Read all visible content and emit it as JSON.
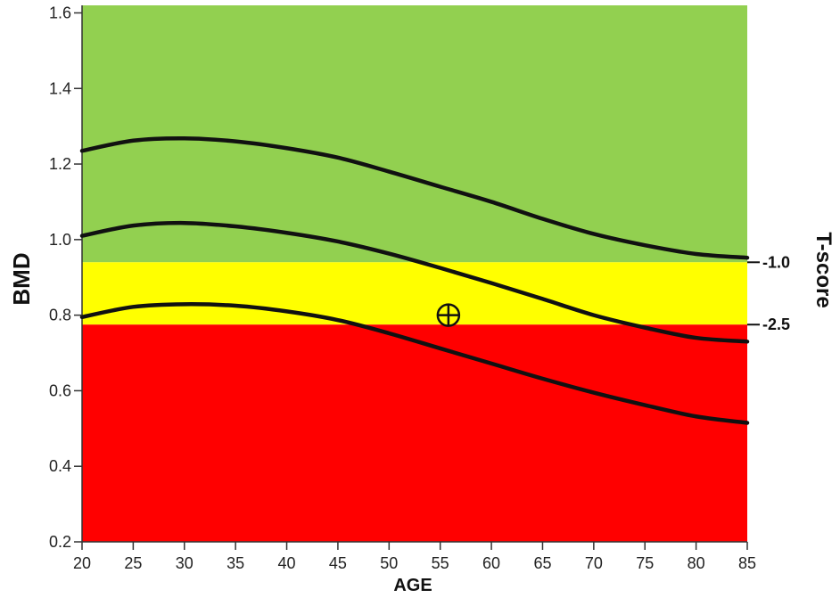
{
  "chart_data": {
    "type": "line",
    "xlabel": "AGE",
    "ylabel": "BMD",
    "y2label": "T-score",
    "xlim": [
      20,
      85
    ],
    "ylim": [
      0.2,
      1.62
    ],
    "xticks": [
      20,
      25,
      30,
      35,
      40,
      45,
      50,
      55,
      60,
      65,
      70,
      75,
      80,
      85
    ],
    "yticks": [
      0.2,
      0.4,
      0.6,
      0.8,
      1.0,
      1.2,
      1.4,
      1.6
    ],
    "tscore_ticks": [
      {
        "label": "-1.0",
        "bmd": 0.94
      },
      {
        "label": "-2.5",
        "bmd": 0.775
      }
    ],
    "zones": [
      {
        "from": 0.94,
        "to": 1.62,
        "color": "#92d050"
      },
      {
        "from": 0.775,
        "to": 0.94,
        "color": "#ffff00"
      },
      {
        "from": 0.2,
        "to": 0.775,
        "color": "#ff0000"
      }
    ],
    "series": [
      {
        "x": [
          20,
          25,
          30,
          35,
          40,
          45,
          50,
          55,
          60,
          65,
          70,
          75,
          80,
          85
        ],
        "y": [
          1.235,
          1.262,
          1.268,
          1.26,
          1.242,
          1.217,
          1.18,
          1.14,
          1.1,
          1.055,
          1.015,
          0.985,
          0.962,
          0.952
        ]
      },
      {
        "x": [
          20,
          25,
          30,
          35,
          40,
          45,
          50,
          55,
          60,
          65,
          70,
          75,
          80,
          85
        ],
        "y": [
          1.01,
          1.037,
          1.044,
          1.035,
          1.018,
          0.995,
          0.963,
          0.925,
          0.885,
          0.843,
          0.8,
          0.767,
          0.74,
          0.73
        ]
      },
      {
        "x": [
          20,
          25,
          30,
          35,
          40,
          45,
          50,
          55,
          60,
          65,
          70,
          75,
          80,
          85
        ],
        "y": [
          0.795,
          0.822,
          0.829,
          0.825,
          0.81,
          0.787,
          0.752,
          0.712,
          0.672,
          0.632,
          0.595,
          0.562,
          0.532,
          0.515
        ]
      }
    ],
    "marker": {
      "x": 55.8,
      "y": 0.8,
      "symbol": "circle-plus"
    },
    "grid": false
  }
}
